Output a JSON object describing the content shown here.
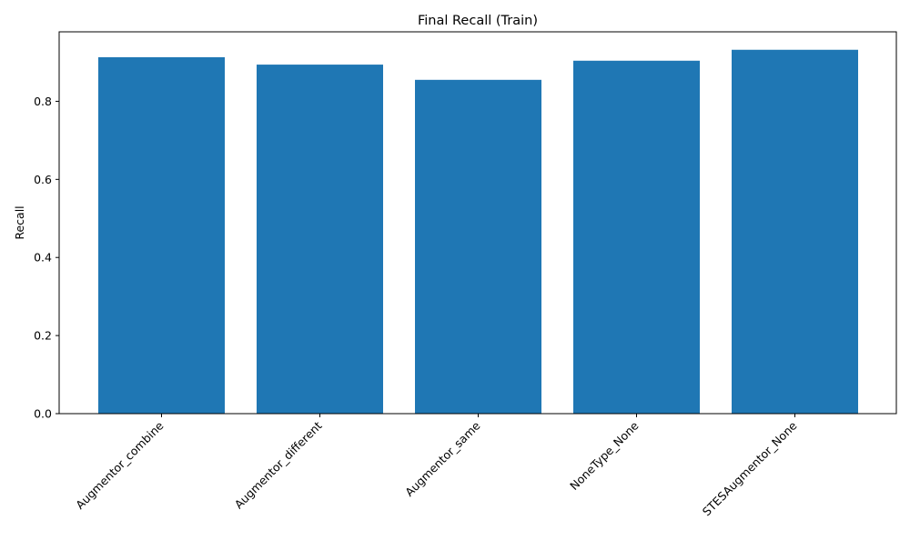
{
  "chart_data": {
    "type": "bar",
    "title": "Final Recall (Train)",
    "xlabel": "",
    "ylabel": "Recall",
    "categories": [
      "Augmentor_combine",
      "Augmentor_different",
      "Augmentor_same",
      "NoneType_None",
      "STESAugmentor_None"
    ],
    "values": [
      0.913,
      0.894,
      0.855,
      0.904,
      0.932
    ],
    "ylim": [
      0,
      0.978
    ],
    "yticks": [
      "0.0",
      "0.2",
      "0.4",
      "0.6",
      "0.8"
    ],
    "bar_color": "#1f77b4",
    "grid": false,
    "legend": "none"
  }
}
